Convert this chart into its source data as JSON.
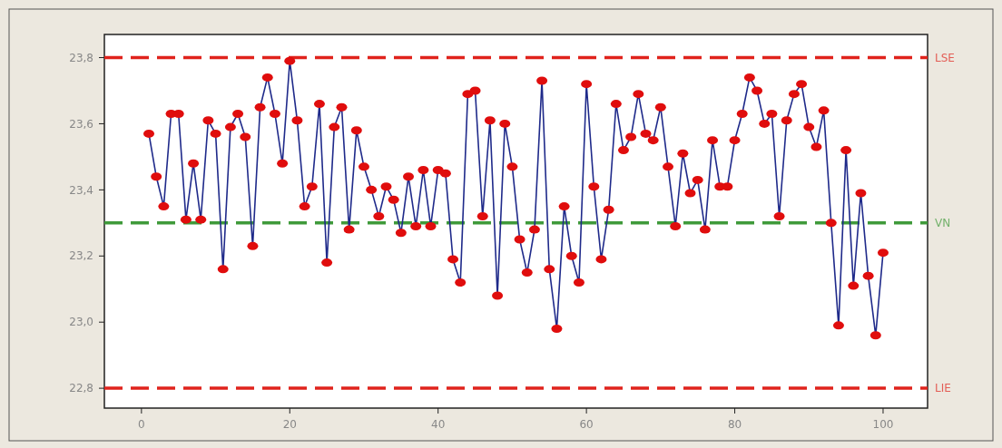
{
  "chart_data": {
    "type": "line",
    "marker": "circle",
    "line_style": "solid",
    "grid": false,
    "x": [
      1,
      2,
      3,
      4,
      5,
      6,
      7,
      8,
      9,
      10,
      11,
      12,
      13,
      14,
      15,
      16,
      17,
      18,
      19,
      20,
      21,
      22,
      23,
      24,
      25,
      26,
      27,
      28,
      29,
      30,
      31,
      32,
      33,
      34,
      35,
      36,
      37,
      38,
      39,
      40,
      41,
      42,
      43,
      44,
      45,
      46,
      47,
      48,
      49,
      50,
      51,
      52,
      53,
      54,
      55,
      56,
      57,
      58,
      59,
      60,
      61,
      62,
      63,
      64,
      65,
      66,
      67,
      68,
      69,
      70,
      71,
      72,
      73,
      74,
      75,
      76,
      77,
      78,
      79,
      80,
      81,
      82,
      83,
      84,
      85,
      86,
      87,
      88,
      89,
      90,
      91,
      92,
      93,
      94,
      95,
      96,
      97,
      98,
      99,
      100
    ],
    "series": [
      {
        "color": "#1f2a8a",
        "values": [
          23.57,
          23.44,
          23.35,
          23.63,
          23.63,
          23.31,
          23.48,
          23.31,
          23.61,
          23.57,
          23.16,
          23.59,
          23.63,
          23.56,
          23.23,
          23.65,
          23.74,
          23.63,
          23.48,
          23.79,
          23.61,
          23.35,
          23.41,
          23.66,
          23.18,
          23.59,
          23.65,
          23.28,
          23.58,
          23.47,
          23.4,
          23.32,
          23.41,
          23.37,
          23.27,
          23.44,
          23.29,
          23.46,
          23.29,
          23.46,
          23.45,
          23.19,
          23.12,
          23.69,
          23.7,
          23.32,
          23.61,
          23.08,
          23.6,
          23.47,
          23.25,
          23.15,
          23.28,
          23.73,
          23.16,
          22.98,
          23.35,
          23.2,
          23.12,
          23.72,
          23.41,
          23.19,
          23.34,
          23.66,
          23.52,
          23.56,
          23.69,
          23.57,
          23.55,
          23.65,
          23.47,
          23.29,
          23.51,
          23.39,
          23.43,
          23.28,
          23.55,
          23.41,
          23.41,
          23.55,
          23.63,
          23.74,
          23.7,
          23.6,
          23.63,
          23.32,
          23.61,
          23.69,
          23.72,
          23.59,
          23.53,
          23.64,
          23.3,
          22.99,
          23.52,
          23.11,
          23.39,
          23.14,
          22.96,
          23.21
        ]
      }
    ],
    "xlim": [
      -5,
      106
    ],
    "xticks": [
      0,
      20,
      40,
      60,
      80,
      100
    ],
    "ylim": [
      22.74,
      23.87
    ],
    "yticks": [
      {
        "value": 22.8,
        "label": "22,8"
      },
      {
        "value": 23.0,
        "label": "23,0"
      },
      {
        "value": 23.2,
        "label": "23,2"
      },
      {
        "value": 23.4,
        "label": "23,4"
      },
      {
        "value": 23.6,
        "label": "23,6"
      },
      {
        "value": 23.8,
        "label": "23,8"
      }
    ],
    "ref_lines": [
      {
        "axis": "y",
        "value": 23.8,
        "label": "LSE",
        "color": "#e0231c",
        "line_style": "dashed"
      },
      {
        "axis": "y",
        "value": 23.3,
        "label": "VN",
        "color": "#3f9a3a",
        "line_style": "dashed"
      },
      {
        "axis": "y",
        "value": 22.8,
        "label": "LIE",
        "color": "#e0231c",
        "line_style": "dashed"
      }
    ]
  }
}
